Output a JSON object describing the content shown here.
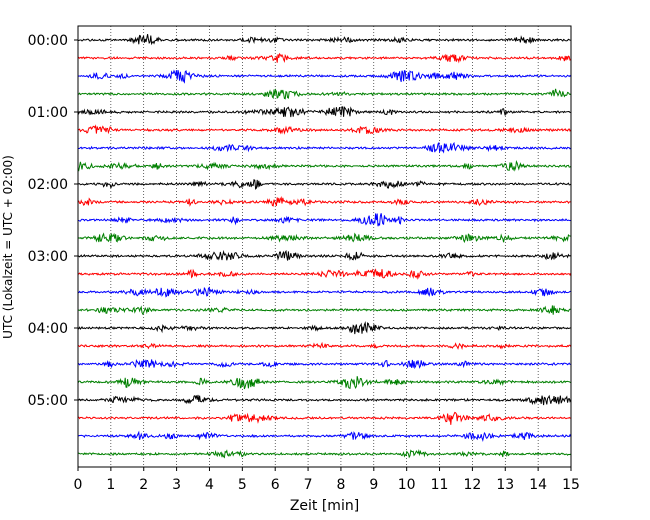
{
  "chart_data": {
    "type": "line",
    "title": "",
    "xlabel": "Zeit  [min]",
    "ylabel": "UTC (Lokalzeit = UTC + 02:00)",
    "xlim": [
      0,
      15
    ],
    "x_ticks": [
      "0",
      "1",
      "2",
      "3",
      "4",
      "5",
      "6",
      "7",
      "8",
      "9",
      "10",
      "11",
      "12",
      "13",
      "14",
      "15"
    ],
    "y_ticks": [
      "00:00",
      "01:00",
      "02:00",
      "03:00",
      "04:00",
      "05:00"
    ],
    "grid": "vertical dotted lines at each minute",
    "trace_count": 24,
    "traces_per_hour": 4,
    "color_cycle": [
      "#000000",
      "#ff0000",
      "#0000ff",
      "#008000"
    ],
    "notes": "Helicorder seismogram: each row is a 15-minute trace; colors cycle black, red, blue, green."
  }
}
